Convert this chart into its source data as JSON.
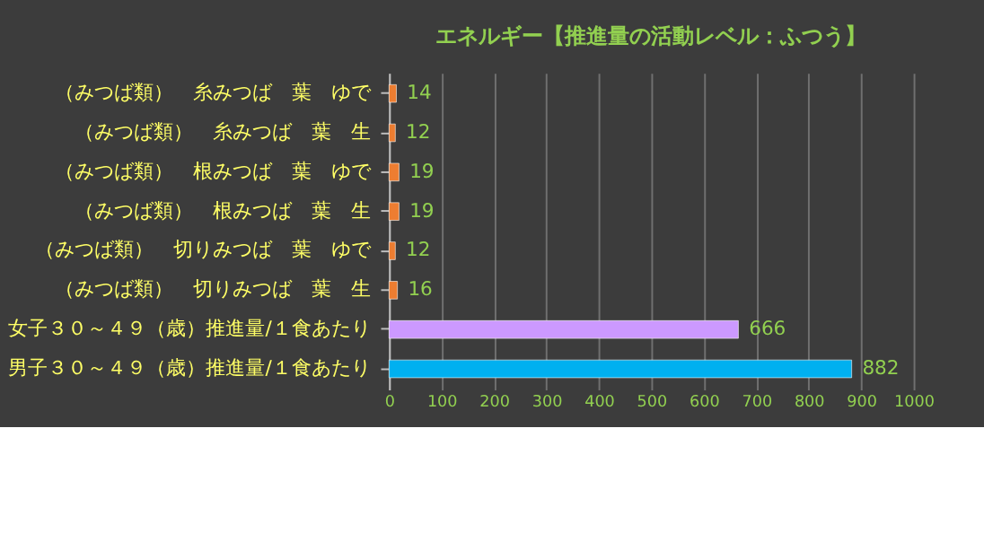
{
  "chart_data": {
    "type": "bar",
    "orientation": "horizontal",
    "title": "エネルギー【推進量の活動レベル：ふつう】",
    "categories": [
      "（みつば類）　糸みつば　葉　ゆで",
      "（みつば類）　糸みつば　葉　生",
      "（みつば類）　根みつば　葉　ゆで",
      "（みつば類）　根みつば　葉　生",
      "（みつば類）　切りみつば　葉　ゆで",
      "（みつば類）　切りみつば　葉　生",
      "女子３０～４９（歳）推進量/１食あたり",
      "男子３０～４９（歳）推進量/１食あたり"
    ],
    "values": [
      14,
      12,
      19,
      19,
      12,
      16,
      666,
      882
    ],
    "colors": [
      "#ed7d31",
      "#ed7d31",
      "#ed7d31",
      "#ed7d31",
      "#ed7d31",
      "#ed7d31",
      "#cc99ff",
      "#00b0f0"
    ],
    "xlim": [
      0,
      1000
    ],
    "xticks": [
      0,
      100,
      200,
      300,
      400,
      500,
      600,
      700,
      800,
      900,
      1000
    ],
    "grid": "x",
    "data_labels": true
  }
}
